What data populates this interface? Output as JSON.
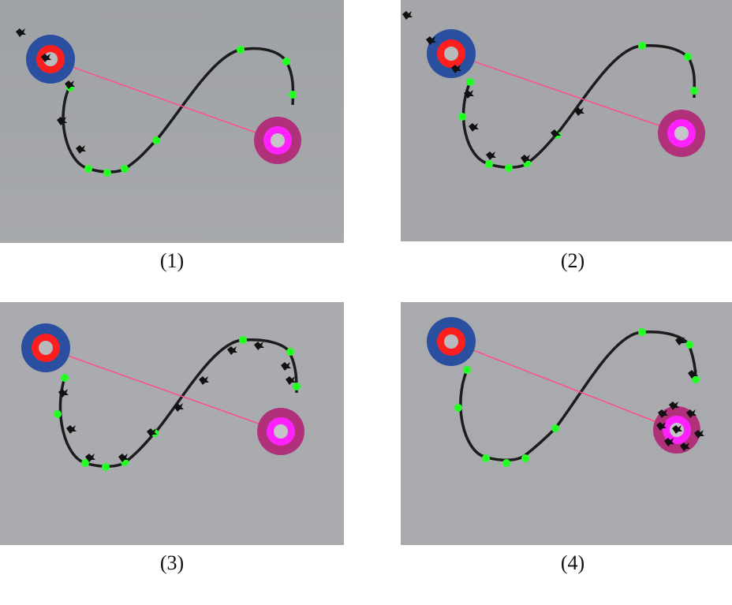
{
  "figure": {
    "panels": [
      {
        "caption": "(1)"
      },
      {
        "caption": "(2)"
      },
      {
        "caption": "(3)"
      },
      {
        "caption": "(4)"
      }
    ]
  },
  "colors": {
    "sky": "#a9abae",
    "trajectory": "#1c1c1c",
    "waypoint": "#22ff22",
    "start_outer": "#2a4fa0",
    "start_ring": "#ff1e1e",
    "goal_outer": "#b0307a",
    "goal_ring": "#ff22ff",
    "link_line": "#ff4f8a",
    "drone": "#111111"
  }
}
